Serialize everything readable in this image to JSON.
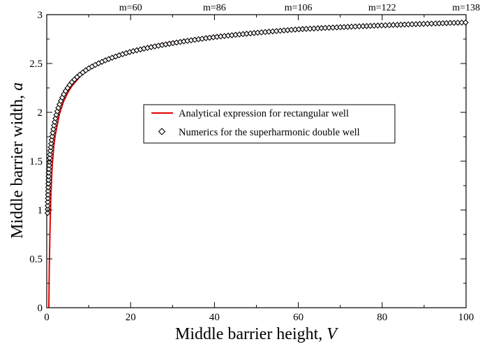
{
  "chart_data": {
    "type": "line",
    "xlabel": {
      "main": "Middle barrier height, ",
      "var": "V"
    },
    "ylabel": {
      "main": "Middle barrier width, ",
      "var": "a"
    },
    "xlim": [
      0,
      100
    ],
    "ylim": [
      0,
      3
    ],
    "x_ticks": [
      0,
      20,
      40,
      60,
      80,
      100
    ],
    "x_tick_labels": [
      "0",
      "20",
      "40",
      "60",
      "80",
      "100"
    ],
    "y_ticks": [
      0,
      0.5,
      1,
      1.5,
      2,
      2.5,
      3
    ],
    "y_tick_labels": [
      "0",
      "0.5",
      "1",
      "1.5",
      "2",
      "2.5",
      "3"
    ],
    "top_axis": {
      "ticks": [
        20,
        40,
        60,
        80,
        100
      ],
      "labels": [
        "m=60",
        "m=86",
        "m=106",
        "m=122",
        "m=138"
      ]
    },
    "grid": false,
    "legend_position": "center",
    "series": [
      {
        "name": "Analytical expression for rectangular well",
        "style": "line",
        "color": "#e00000",
        "x": [
          0.5,
          0.6,
          0.8,
          1,
          1.3,
          1.7,
          2,
          3,
          4,
          5,
          6,
          8,
          10,
          12,
          15,
          20,
          25,
          30,
          40,
          50,
          60,
          70,
          80,
          90,
          100
        ],
        "y": [
          0.0,
          0.4,
          0.85,
          1.17,
          1.45,
          1.66,
          1.76,
          1.98,
          2.11,
          2.2,
          2.27,
          2.37,
          2.44,
          2.5,
          2.56,
          2.63,
          2.68,
          2.72,
          2.78,
          2.82,
          2.85,
          2.87,
          2.89,
          2.91,
          2.92
        ]
      },
      {
        "name": "Numerics for the superharmonic  double well",
        "style": "marker",
        "marker": "diamond",
        "color": "#000000",
        "x": [
          0.2,
          0.35,
          0.5,
          0.7,
          1.0,
          1.4,
          2.0,
          2.8,
          4.0,
          6.0,
          10,
          20,
          40,
          60,
          80,
          100
        ],
        "y": [
          0.97,
          1.23,
          1.41,
          1.53,
          1.66,
          1.78,
          1.92,
          2.05,
          2.18,
          2.31,
          2.45,
          2.62,
          2.77,
          2.85,
          2.89,
          2.92
        ]
      }
    ]
  }
}
